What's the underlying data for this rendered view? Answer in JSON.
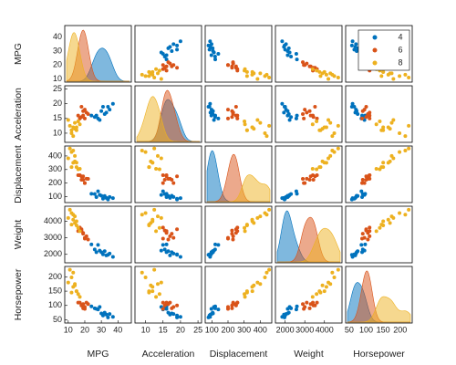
{
  "chart_data": {
    "type": "scatter_matrix",
    "variables": [
      {
        "name": "MPG",
        "lim": [
          9,
          47
        ],
        "ticks": [
          10,
          20,
          30,
          40
        ]
      },
      {
        "name": "Acceleration",
        "lim": [
          7.5,
          25.5
        ],
        "ticks": [
          10,
          15,
          20,
          25
        ]
      },
      {
        "name": "Displacement",
        "lim": [
          70,
          460
        ],
        "ticks": [
          100,
          200,
          300,
          400
        ]
      },
      {
        "name": "Weight",
        "lim": [
          1600,
          4800
        ],
        "ticks": [
          2000,
          3000,
          4000
        ]
      },
      {
        "name": "Horsepower",
        "lim": [
          45,
          230
        ],
        "ticks": [
          50,
          100,
          150,
          200
        ]
      }
    ],
    "series": [
      {
        "name": "4",
        "color": "#0072BD",
        "values": [
          [
            27,
            31,
            33,
            26,
            35,
            29,
            32,
            37,
            28,
            30,
            24,
            34
          ],
          [
            16,
            19,
            17,
            15.5,
            18,
            14.5,
            16.5,
            20,
            15,
            17.5,
            16,
            19
          ],
          [
            97,
            85,
            91,
            120,
            98,
            113,
            105,
            89,
            140,
            107,
            121,
            79
          ],
          [
            2130,
            2000,
            1940,
            2300,
            2045,
            2230,
            2190,
            1850,
            2570,
            2130,
            2600,
            1970
          ],
          [
            88,
            65,
            68,
            90,
            70,
            95,
            75,
            60,
            86,
            72,
            97,
            58
          ]
        ]
      },
      {
        "name": "6",
        "color": "#D95319",
        "values": [
          [
            18,
            19,
            21,
            20,
            17,
            22,
            18,
            19,
            20,
            16
          ],
          [
            15.5,
            16,
            17,
            18,
            15,
            16.5,
            19,
            17.5,
            15,
            16
          ],
          [
            225,
            250,
            232,
            200,
            258,
            231,
            250,
            225,
            200,
            258
          ],
          [
            3440,
            3300,
            3100,
            3000,
            3620,
            2900,
            3520,
            3250,
            2950,
            3410
          ],
          [
            100,
            105,
            110,
            95,
            110,
            105,
            100,
            90,
            88,
            110
          ]
        ]
      },
      {
        "name": "8",
        "color": "#EDB120",
        "values": [
          [
            13,
            15,
            14,
            11,
            16,
            12,
            14,
            17,
            15,
            13,
            10,
            12
          ],
          [
            12,
            11,
            13.5,
            12.5,
            14,
            10,
            11.5,
            13,
            12,
            9,
            14.5,
            11
          ],
          [
            350,
            318,
            400,
            455,
            302,
            429,
            360,
            305,
            351,
            440,
            383,
            318
          ],
          [
            4100,
            3750,
            4300,
            4700,
            3600,
            4500,
            3900,
            3400,
            4000,
            4400,
            4200,
            3800
          ],
          [
            165,
            150,
            175,
            225,
            140,
            198,
            170,
            130,
            150,
            215,
            180,
            145
          ]
        ]
      }
    ],
    "legend": "upper right"
  }
}
